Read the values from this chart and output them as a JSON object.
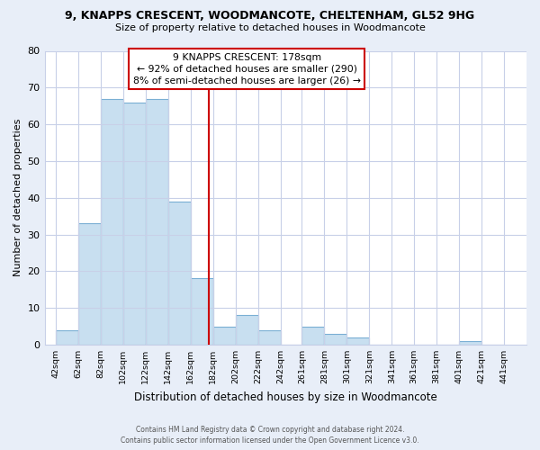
{
  "title": "9, KNAPPS CRESCENT, WOODMANCOTE, CHELTENHAM, GL52 9HG",
  "subtitle": "Size of property relative to detached houses in Woodmancote",
  "xlabel": "Distribution of detached houses by size in Woodmancote",
  "ylabel": "Number of detached properties",
  "bar_left_edges": [
    42,
    62,
    82,
    102,
    122,
    142,
    162,
    182,
    202,
    222,
    242,
    261,
    281,
    301,
    321,
    341,
    361,
    381,
    401,
    421
  ],
  "bar_heights": [
    4,
    33,
    67,
    66,
    67,
    39,
    18,
    5,
    8,
    4,
    0,
    5,
    3,
    2,
    0,
    0,
    0,
    0,
    1,
    0
  ],
  "bar_widths": [
    20,
    20,
    20,
    20,
    20,
    20,
    20,
    20,
    20,
    20,
    19,
    20,
    20,
    20,
    20,
    20,
    20,
    20,
    20,
    20
  ],
  "bar_color": "#c8dff0",
  "bar_edge_color": "#7aafd4",
  "highlight_x": 178,
  "highlight_color": "#cc0000",
  "annotation_title": "9 KNAPPS CRESCENT: 178sqm",
  "annotation_line1": "← 92% of detached houses are smaller (290)",
  "annotation_line2": "8% of semi-detached houses are larger (26) →",
  "annotation_box_color": "#ffffff",
  "annotation_box_edge_color": "#cc0000",
  "tick_labels": [
    "42sqm",
    "62sqm",
    "82sqm",
    "102sqm",
    "122sqm",
    "142sqm",
    "162sqm",
    "182sqm",
    "202sqm",
    "222sqm",
    "242sqm",
    "261sqm",
    "281sqm",
    "301sqm",
    "321sqm",
    "341sqm",
    "361sqm",
    "381sqm",
    "401sqm",
    "421sqm",
    "441sqm"
  ],
  "tick_positions": [
    42,
    62,
    82,
    102,
    122,
    142,
    162,
    182,
    202,
    222,
    242,
    261,
    281,
    301,
    321,
    341,
    361,
    381,
    401,
    421,
    441
  ],
  "ylim": [
    0,
    80
  ],
  "xlim": [
    32,
    461
  ],
  "yticks": [
    0,
    10,
    20,
    30,
    40,
    50,
    60,
    70,
    80
  ],
  "footer_line1": "Contains HM Land Registry data © Crown copyright and database right 2024.",
  "footer_line2": "Contains public sector information licensed under the Open Government Licence v3.0.",
  "bg_color": "#e8eef8",
  "plot_bg_color": "#ffffff",
  "grid_color": "#c8d0e8"
}
